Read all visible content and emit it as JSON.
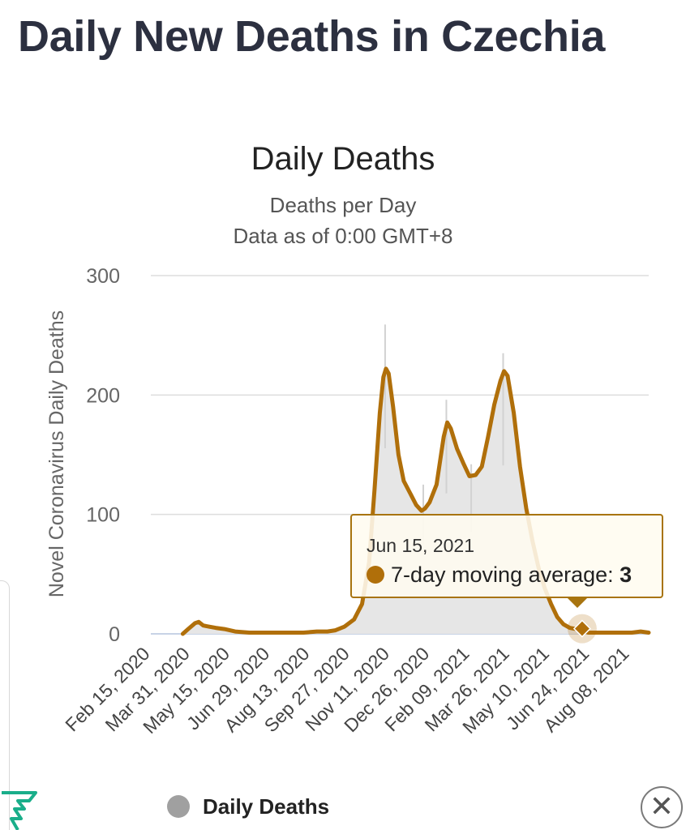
{
  "page": {
    "title": "Daily New Deaths in Czechia"
  },
  "chart_data": {
    "type": "area",
    "title": "Daily Deaths",
    "subtitle": "Deaths per Day",
    "note": "Data as of 0:00 GMT+8",
    "ylabel": "Novel Coronavirus Daily Deaths",
    "ylim": [
      0,
      300
    ],
    "yticks": [
      0,
      100,
      200,
      300
    ],
    "xticks": [
      "Feb 15, 2020",
      "Mar 31, 2020",
      "May 15, 2020",
      "Jun 29, 2020",
      "Aug 13, 2020",
      "Sep 27, 2020",
      "Nov 11, 2020",
      "Dec 26, 2020",
      "Feb 09, 2021",
      "Mar 26, 2021",
      "May 10, 2021",
      "Jun 24, 2021",
      "Aug 08, 2021"
    ],
    "x_start_date": "2020-02-15",
    "x_end_date": "2021-08-29",
    "line_color": "#b06f0a",
    "area_color": "#e6e6e6",
    "series": [
      {
        "name": "7-day moving average",
        "points": [
          [
            "2020-03-22",
            0
          ],
          [
            "2020-03-28",
            4
          ],
          [
            "2020-04-05",
            9
          ],
          [
            "2020-04-09",
            10
          ],
          [
            "2020-04-14",
            7
          ],
          [
            "2020-04-21",
            6
          ],
          [
            "2020-04-28",
            5
          ],
          [
            "2020-05-08",
            4
          ],
          [
            "2020-05-20",
            2
          ],
          [
            "2020-06-05",
            1
          ],
          [
            "2020-07-05",
            1
          ],
          [
            "2020-08-05",
            1
          ],
          [
            "2020-08-20",
            2
          ],
          [
            "2020-09-01",
            2
          ],
          [
            "2020-09-10",
            3
          ],
          [
            "2020-09-20",
            6
          ],
          [
            "2020-10-01",
            12
          ],
          [
            "2020-10-10",
            25
          ],
          [
            "2020-10-18",
            60
          ],
          [
            "2020-10-24",
            120
          ],
          [
            "2020-10-30",
            185
          ],
          [
            "2020-11-03",
            215
          ],
          [
            "2020-11-06",
            222
          ],
          [
            "2020-11-09",
            218
          ],
          [
            "2020-11-14",
            190
          ],
          [
            "2020-11-20",
            150
          ],
          [
            "2020-11-26",
            128
          ],
          [
            "2020-12-03",
            118
          ],
          [
            "2020-12-10",
            108
          ],
          [
            "2020-12-16",
            103
          ],
          [
            "2020-12-20",
            105
          ],
          [
            "2020-12-25",
            110
          ],
          [
            "2021-01-02",
            125
          ],
          [
            "2021-01-10",
            165
          ],
          [
            "2021-01-14",
            177
          ],
          [
            "2021-01-18",
            172
          ],
          [
            "2021-01-25",
            155
          ],
          [
            "2021-02-01",
            143
          ],
          [
            "2021-02-08",
            132
          ],
          [
            "2021-02-15",
            133
          ],
          [
            "2021-02-22",
            140
          ],
          [
            "2021-03-01",
            165
          ],
          [
            "2021-03-08",
            192
          ],
          [
            "2021-03-15",
            212
          ],
          [
            "2021-03-19",
            220
          ],
          [
            "2021-03-23",
            216
          ],
          [
            "2021-03-30",
            185
          ],
          [
            "2021-04-06",
            140
          ],
          [
            "2021-04-13",
            105
          ],
          [
            "2021-04-20",
            78
          ],
          [
            "2021-04-27",
            55
          ],
          [
            "2021-05-04",
            38
          ],
          [
            "2021-05-11",
            25
          ],
          [
            "2021-05-18",
            14
          ],
          [
            "2021-05-25",
            8
          ],
          [
            "2021-06-01",
            5
          ],
          [
            "2021-06-08",
            4
          ],
          [
            "2021-06-15",
            3
          ],
          [
            "2021-06-22",
            1
          ],
          [
            "2021-07-05",
            1
          ],
          [
            "2021-07-25",
            1
          ],
          [
            "2021-08-10",
            1
          ],
          [
            "2021-08-20",
            2
          ],
          [
            "2021-08-29",
            1
          ]
        ]
      },
      {
        "name": "Daily Deaths",
        "peaks": [
          [
            "2020-11-05",
            259
          ],
          [
            "2021-01-13",
            196
          ],
          [
            "2021-03-18",
            235
          ],
          [
            "2020-12-18",
            125
          ],
          [
            "2021-02-10",
            142
          ]
        ]
      }
    ],
    "tooltip": {
      "date": "Jun 15, 2021",
      "label": "7-day moving average: ",
      "value": "3",
      "point": [
        "2021-06-15",
        3
      ]
    }
  },
  "legend": {
    "items": [
      {
        "label": "Daily Deaths",
        "color": "#a0a0a0"
      }
    ]
  },
  "controls": {
    "close_symbol": "✕"
  }
}
